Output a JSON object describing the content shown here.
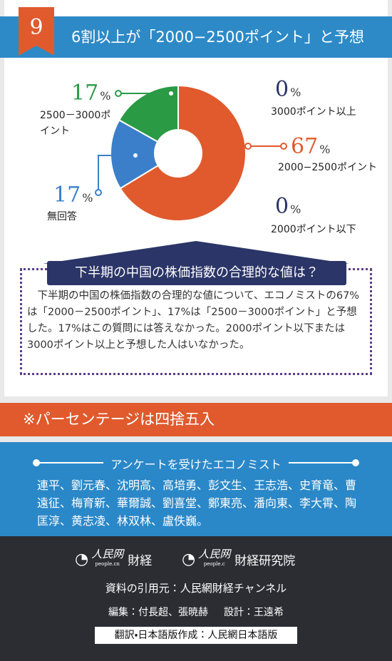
{
  "header": {
    "number": "9",
    "title": "6割以上が「2000−2500ポイント」と予想"
  },
  "chart_data": {
    "type": "pie",
    "categories": [
      "2000−2500ポイント",
      "無回答",
      "2500－3000ポイント",
      "3000ポイント以上",
      "2000ポイント以下"
    ],
    "values": [
      67,
      17,
      17,
      0,
      0
    ],
    "colors": [
      "#e05a2d",
      "#3b7fca",
      "#2a9a45",
      "#2b3567",
      "#2b3567"
    ],
    "unit": "%"
  },
  "question": {
    "title": "下半期の中国の株価指数の合理的な値は？",
    "text": "下半期の中国の株価指数の合理的な値について、エコノミストの67%は「2000－2500ポイント」、17%は「2500－3000ポイント」と予想した。17%はこの質問には答えなかった。2000ポイント以下または3000ポイント以上と予想した人はいなかった。"
  },
  "note": "※パーセンテージは四捨五入",
  "economists": {
    "title": "アンケートを受けたエコノミスト",
    "names": "連平、劉元春、沈明高、高培勇、彭文生、王志浩、史育竜、曹遠征、梅育新、華爾誠、劉喜堂、鄭東亮、潘向東、李大霄、陶匡淳、黄志凌、林双林、盧佚巍。"
  },
  "footer": {
    "logos": [
      {
        "mark": "人民网",
        "sub": "people.cn",
        "name": "財経"
      },
      {
        "mark": "人民网",
        "sub": "people.c",
        "name": "財経研究院"
      }
    ],
    "source": "資料の引用元：人民網財経チャンネル",
    "editors": "編集：付長超、張暁赫",
    "design": "設計：王遠希",
    "credit": "翻訳・日本語版作成：人民網日本語版"
  }
}
